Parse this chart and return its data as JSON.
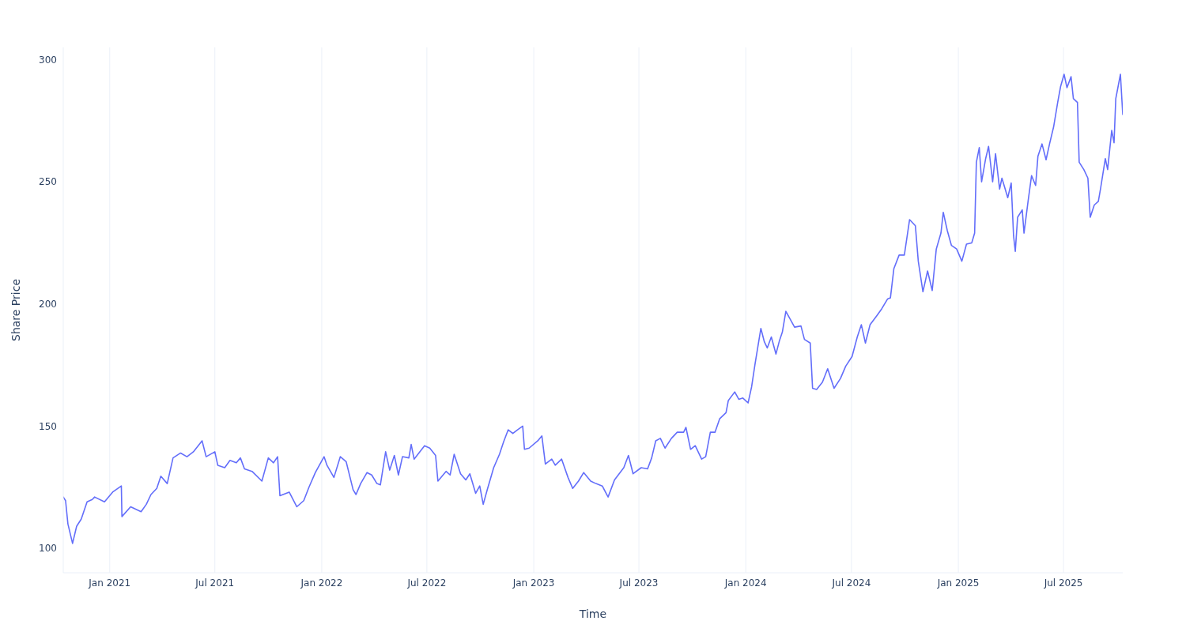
{
  "chart_data": {
    "type": "line",
    "xlabel": "Time",
    "ylabel": "Share Price",
    "grid": true,
    "xlim": [
      "2020-10-13",
      "2025-10-11"
    ],
    "ylim": [
      90,
      305
    ],
    "xticks": [
      {
        "value": "2021-01-01",
        "label": "Jan 2021"
      },
      {
        "value": "2021-07-01",
        "label": "Jul 2021"
      },
      {
        "value": "2022-01-01",
        "label": "Jan 2022"
      },
      {
        "value": "2022-07-01",
        "label": "Jul 2022"
      },
      {
        "value": "2023-01-01",
        "label": "Jan 2023"
      },
      {
        "value": "2023-07-01",
        "label": "Jul 2023"
      },
      {
        "value": "2024-01-01",
        "label": "Jan 2024"
      },
      {
        "value": "2024-07-01",
        "label": "Jul 2024"
      },
      {
        "value": "2025-01-01",
        "label": "Jan 2025"
      },
      {
        "value": "2025-07-01",
        "label": "Jul 2025"
      }
    ],
    "yticks": [
      100,
      150,
      200,
      250,
      300
    ],
    "x": [
      "2020-10-13",
      "2020-10-17",
      "2020-10-21",
      "2020-10-29",
      "2020-11-05",
      "2020-11-13",
      "2020-11-23",
      "2020-12-02",
      "2020-12-06",
      "2020-12-23",
      "2021-01-06",
      "2021-01-21",
      "2021-01-22",
      "2021-02-06",
      "2021-02-24",
      "2021-03-05",
      "2021-03-13",
      "2021-03-23",
      "2021-03-30",
      "2021-04-10",
      "2021-04-20",
      "2021-05-03",
      "2021-05-14",
      "2021-05-25",
      "2021-06-09",
      "2021-06-16",
      "2021-07-01",
      "2021-07-06",
      "2021-07-18",
      "2021-07-27",
      "2021-08-07",
      "2021-08-14",
      "2021-08-21",
      "2021-09-03",
      "2021-09-20",
      "2021-10-01",
      "2021-10-10",
      "2021-10-17",
      "2021-10-21",
      "2021-11-06",
      "2021-11-19",
      "2021-12-01",
      "2021-12-10",
      "2021-12-21",
      "2022-01-05",
      "2022-01-10",
      "2022-01-22",
      "2022-02-02",
      "2022-02-12",
      "2022-02-24",
      "2022-03-01",
      "2022-03-09",
      "2022-03-20",
      "2022-03-28",
      "2022-04-06",
      "2022-04-12",
      "2022-04-21",
      "2022-04-28",
      "2022-05-06",
      "2022-05-13",
      "2022-05-20",
      "2022-05-31",
      "2022-06-04",
      "2022-06-09",
      "2022-06-27",
      "2022-07-06",
      "2022-07-16",
      "2022-07-20",
      "2022-08-03",
      "2022-08-10",
      "2022-08-17",
      "2022-08-28",
      "2022-09-06",
      "2022-09-13",
      "2022-09-23",
      "2022-09-30",
      "2022-10-06",
      "2022-10-13",
      "2022-10-24",
      "2022-11-03",
      "2022-11-10",
      "2022-11-18",
      "2022-11-26",
      "2022-12-04",
      "2022-12-13",
      "2022-12-16",
      "2022-12-24",
      "2023-01-08",
      "2023-01-15",
      "2023-01-21",
      "2023-02-01",
      "2023-02-07",
      "2023-02-18",
      "2023-03-01",
      "2023-03-09",
      "2023-03-19",
      "2023-03-28",
      "2023-04-09",
      "2023-04-18",
      "2023-04-29",
      "2023-05-09",
      "2023-05-20",
      "2023-06-05",
      "2023-06-13",
      "2023-06-21",
      "2023-07-05",
      "2023-07-16",
      "2023-07-23",
      "2023-07-30",
      "2023-08-07",
      "2023-08-15",
      "2023-08-26",
      "2023-09-05",
      "2023-09-16",
      "2023-09-20",
      "2023-09-28",
      "2023-10-06",
      "2023-10-17",
      "2023-10-24",
      "2023-11-01",
      "2023-11-09",
      "2023-11-17",
      "2023-11-28",
      "2023-12-02",
      "2023-12-13",
      "2023-12-20",
      "2023-12-27",
      "2024-01-05",
      "2024-01-11",
      "2024-01-17",
      "2024-01-27",
      "2024-02-02",
      "2024-02-07",
      "2024-02-14",
      "2024-02-22",
      "2024-02-28",
      "2024-03-04",
      "2024-03-10",
      "2024-03-17",
      "2024-03-25",
      "2024-04-05",
      "2024-04-11",
      "2024-04-21",
      "2024-04-25",
      "2024-05-02",
      "2024-05-12",
      "2024-05-21",
      "2024-06-01",
      "2024-06-12",
      "2024-06-21",
      "2024-07-02",
      "2024-07-11",
      "2024-07-18",
      "2024-07-25",
      "2024-08-02",
      "2024-08-13",
      "2024-08-22",
      "2024-09-01",
      "2024-09-06",
      "2024-09-12",
      "2024-09-21",
      "2024-09-30",
      "2024-10-09",
      "2024-10-19",
      "2024-10-24",
      "2024-11-01",
      "2024-11-09",
      "2024-11-17",
      "2024-11-24",
      "2024-12-02",
      "2024-12-06",
      "2024-12-13",
      "2024-12-20",
      "2024-12-29",
      "2025-01-07",
      "2025-01-15",
      "2025-01-24",
      "2025-01-29",
      "2025-02-01",
      "2025-02-06",
      "2025-02-10",
      "2025-02-17",
      "2025-02-22",
      "2025-03-01",
      "2025-03-06",
      "2025-03-13",
      "2025-03-17",
      "2025-03-27",
      "2025-04-02",
      "2025-04-06",
      "2025-04-09",
      "2025-04-13",
      "2025-04-21",
      "2025-04-24",
      "2025-05-01",
      "2025-05-07",
      "2025-05-14",
      "2025-05-18",
      "2025-05-25",
      "2025-06-01",
      "2025-06-07",
      "2025-06-14",
      "2025-06-21",
      "2025-06-26",
      "2025-07-02",
      "2025-07-07",
      "2025-07-14",
      "2025-07-18",
      "2025-07-25",
      "2025-07-28",
      "2025-08-05",
      "2025-08-12",
      "2025-08-16",
      "2025-08-23",
      "2025-08-30",
      "2025-09-03",
      "2025-09-11",
      "2025-09-15",
      "2025-09-22",
      "2025-09-26",
      "2025-09-29",
      "2025-10-03",
      "2025-10-07",
      "2025-10-11"
    ],
    "series": [
      {
        "color": "#636efa",
        "values": [
          121,
          119.5,
          110,
          102,
          109,
          112,
          119,
          120,
          121,
          119,
          123,
          125.5,
          113,
          117,
          115,
          118,
          122,
          124.5,
          129.5,
          126.5,
          137,
          139,
          137.5,
          139.5,
          144,
          137.5,
          139.5,
          134,
          133,
          136,
          135,
          137,
          132.5,
          131.5,
          127.5,
          137,
          135,
          137.5,
          121.5,
          123,
          117,
          119.5,
          125,
          131,
          137.5,
          134,
          129,
          137.5,
          135.5,
          124,
          122,
          126.5,
          131,
          130,
          126.5,
          126,
          139.5,
          132,
          138,
          130,
          137.5,
          137,
          142.5,
          136.5,
          142,
          141,
          138,
          127.5,
          131.5,
          130,
          138.5,
          130.5,
          128,
          130.5,
          122.5,
          125.5,
          118,
          124,
          133,
          138.5,
          143.5,
          148.5,
          147,
          148.5,
          150,
          140.5,
          141,
          144,
          146,
          134.5,
          136.5,
          134,
          136.5,
          129,
          124.5,
          127.5,
          131,
          127.5,
          126.5,
          125.5,
          121,
          128,
          133,
          138,
          130.5,
          133,
          132.5,
          137,
          144,
          145,
          141,
          145,
          147.5,
          147.5,
          149.5,
          140.5,
          142,
          136.5,
          137.5,
          147.5,
          147.5,
          153,
          155.5,
          160.5,
          164,
          161,
          161.5,
          159.5,
          166,
          175.5,
          190,
          184.5,
          182,
          186.5,
          179.5,
          185,
          188.5,
          197,
          194,
          190.5,
          191,
          185.5,
          184,
          165.5,
          165,
          168,
          173.5,
          165.5,
          169.5,
          174.5,
          178.5,
          186.5,
          191.5,
          184,
          191.5,
          195,
          198,
          202,
          202.5,
          214.5,
          220,
          220,
          234.5,
          232,
          217.5,
          205,
          213.5,
          205.5,
          222.5,
          229,
          237.5,
          230,
          224,
          222.5,
          217.5,
          224.5,
          225,
          229,
          258,
          264,
          250,
          259.5,
          264.5,
          250,
          261.5,
          247,
          251.5,
          243.5,
          249.5,
          228,
          221.5,
          235.5,
          238.5,
          229,
          242,
          252.5,
          248.5,
          260.5,
          265.5,
          259,
          265.5,
          272.5,
          282.5,
          289,
          294,
          288.5,
          293,
          284,
          282.5,
          258,
          255,
          251.5,
          235.5,
          240.5,
          242,
          247.5,
          259.5,
          255,
          271,
          266,
          284,
          289,
          294,
          277.5
        ]
      }
    ]
  }
}
